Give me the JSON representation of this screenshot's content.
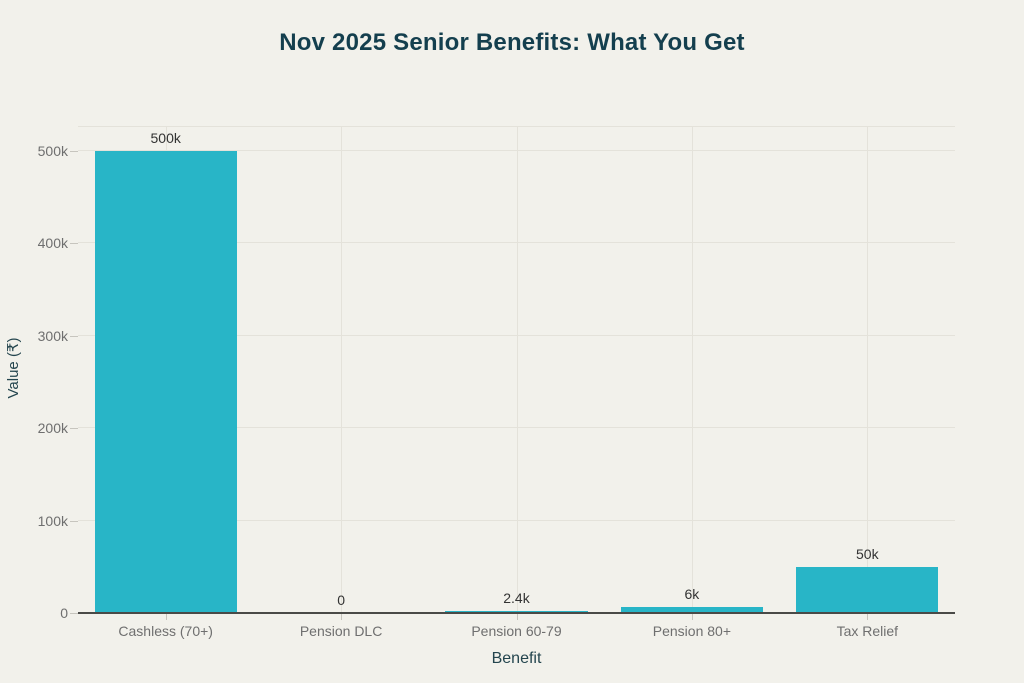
{
  "colors": {
    "bg": "#f2f1eb",
    "bar-color": "#28b5c7",
    "title-color": "#143f4e",
    "axis-title-color": "#24454e",
    "tick-color": "#6f6f6f",
    "value-color": "#333333",
    "grid-color": "#e4e2da",
    "tickmark-color": "#c7c5be",
    "baseline-color": "#4a4a47"
  },
  "chart_data": {
    "type": "bar",
    "title": "Nov 2025 Senior Benefits: What You Get",
    "xlabel": "Benefit",
    "ylabel": "Value (₹)",
    "categories": [
      "Cashless (70+)",
      "Pension DLC",
      "Pension 60-79",
      "Pension 80+",
      "Tax Relief"
    ],
    "values": [
      500000,
      0,
      2400,
      6000,
      50000
    ],
    "value_labels": [
      "500k",
      "0",
      "2.4k",
      "6k",
      "50k"
    ],
    "yticks": [
      {
        "value": 0,
        "label": "0"
      },
      {
        "value": 100000,
        "label": "100k"
      },
      {
        "value": 200000,
        "label": "200k"
      },
      {
        "value": 300000,
        "label": "300k"
      },
      {
        "value": 400000,
        "label": "400k"
      },
      {
        "value": 500000,
        "label": "500k"
      }
    ],
    "ylim": [
      0,
      500000
    ],
    "grid": true,
    "legend": "none",
    "bar_color": "#28b5c7"
  }
}
